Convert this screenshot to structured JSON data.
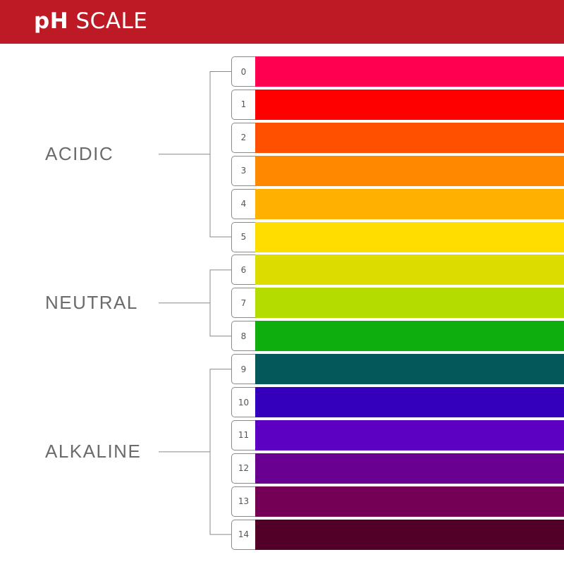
{
  "header": {
    "title_bold": "pH",
    "title_light": "SCALE",
    "background": "#be1a25"
  },
  "groups": [
    {
      "label": "ACIDIC",
      "from": 0,
      "to": 5
    },
    {
      "label": "NEUTRAL",
      "from": 6,
      "to": 8
    },
    {
      "label": "ALKALINE",
      "from": 9,
      "to": 14
    }
  ],
  "levels": [
    {
      "value": "0",
      "color": "#ff0050"
    },
    {
      "value": "1",
      "color": "#ff0000"
    },
    {
      "value": "2",
      "color": "#ff5000"
    },
    {
      "value": "3",
      "color": "#ff8800"
    },
    {
      "value": "4",
      "color": "#ffb000"
    },
    {
      "value": "5",
      "color": "#ffdd00"
    },
    {
      "value": "6",
      "color": "#dcdc00"
    },
    {
      "value": "7",
      "color": "#b4dc00"
    },
    {
      "value": "8",
      "color": "#0dae0d"
    },
    {
      "value": "9",
      "color": "#04585a"
    },
    {
      "value": "10",
      "color": "#3400bb"
    },
    {
      "value": "11",
      "color": "#5c00c2"
    },
    {
      "value": "12",
      "color": "#6a0091"
    },
    {
      "value": "13",
      "color": "#740056"
    },
    {
      "value": "14",
      "color": "#520028"
    }
  ]
}
